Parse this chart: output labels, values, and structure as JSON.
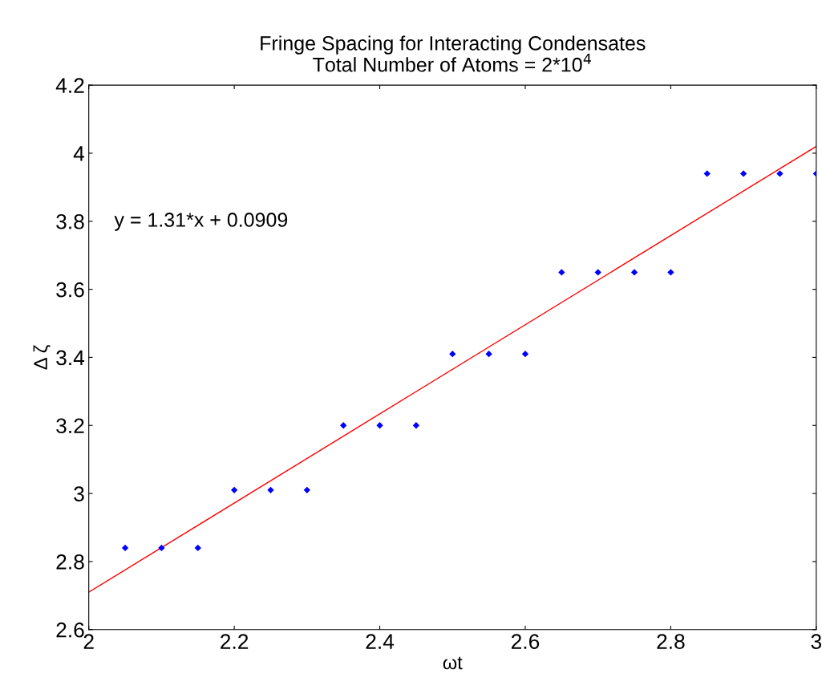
{
  "chart_data": {
    "type": "scatter",
    "title": "Fringe Spacing for Interacting Condensates",
    "subtitle": "Total Number of Atoms = 2*10$^{4}$",
    "xlabel": "ωt",
    "ylabel": "Δ ζ",
    "xlim": [
      2,
      3
    ],
    "xticks": [
      2,
      2.2,
      2.4,
      2.6,
      2.8,
      3
    ],
    "ylim": [
      2.6,
      4.2
    ],
    "yticks": [
      2.6,
      2.8,
      3,
      3.2,
      3.4,
      3.6,
      3.8,
      4,
      4.2
    ],
    "annotations": [
      "y = 1.31*x + 0.0909"
    ],
    "grid": false,
    "legend": false,
    "series": [
      {
        "color": "#0000ff",
        "marker": "diamond",
        "x": [
          2.05,
          2.1,
          2.15,
          2.2,
          2.25,
          2.3,
          2.35,
          2.4,
          2.45,
          2.5,
          2.55,
          2.6,
          2.65,
          2.7,
          2.75,
          2.8,
          2.85,
          2.9,
          2.95,
          3.0
        ],
        "values": [
          2.84,
          2.84,
          2.84,
          3.01,
          3.01,
          3.01,
          3.2,
          3.2,
          3.2,
          3.41,
          3.41,
          3.41,
          3.65,
          3.65,
          3.65,
          3.65,
          3.94,
          3.94,
          3.94,
          3.94
        ]
      },
      {
        "type": "line",
        "color": "#ff0000",
        "line_style": "solid",
        "x": [
          2,
          3
        ],
        "values": [
          2.71,
          4.02
        ]
      }
    ]
  }
}
